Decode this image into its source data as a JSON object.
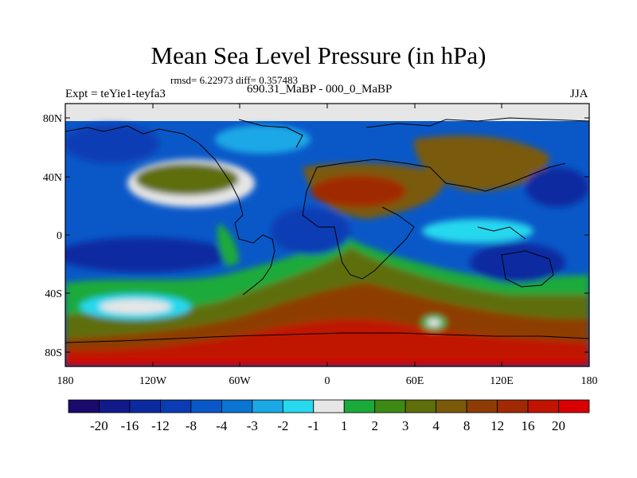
{
  "title": "Mean Sea Level Pressure (in hPa)",
  "stats": "rmsd= 6.22973 diff= 0.357483",
  "left_label": "Expt = teYie1-teyfa3",
  "center_label": "690.31_MaBP - 000_0_MaBP",
  "right_label": "JJA",
  "lat_ticks": [
    "80N",
    "40N",
    "0",
    "40S",
    "80S"
  ],
  "lon_ticks": [
    "180",
    "120W",
    "60W",
    "0",
    "60E",
    "120E",
    "180"
  ],
  "colorbar": {
    "colors": [
      "#1a0a6e",
      "#101a8a",
      "#0c2aa0",
      "#0a3cb4",
      "#0a58c8",
      "#0a74d2",
      "#1aa8e6",
      "#28d8ee",
      "#e6e6e6",
      "#1aaa3a",
      "#3c8a14",
      "#5e6e0a",
      "#7a5a0a",
      "#8e3c06",
      "#a02a04",
      "#c01400",
      "#d80000"
    ],
    "labels": [
      "-20",
      "-16",
      "-12",
      "-8",
      "-4",
      "-3",
      "-2",
      "-1",
      "1",
      "2",
      "3",
      "4",
      "8",
      "12",
      "16",
      "20"
    ]
  }
}
